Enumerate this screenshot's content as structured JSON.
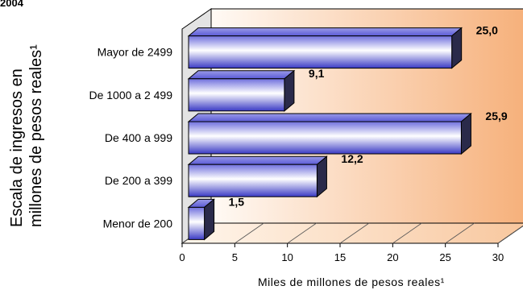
{
  "header_fragment": "2004",
  "chart_data": {
    "type": "bar",
    "orientation": "horizontal",
    "categories": [
      "Mayor de 2499",
      "De 1000 a 2 499",
      "De 400 a 999",
      "De 200 a 399",
      "Menor de 200"
    ],
    "values": [
      25.0,
      9.1,
      25.9,
      12.2,
      1.5
    ],
    "value_labels": [
      "25,0",
      "9,1",
      "25,9",
      "12,2",
      "1,5"
    ],
    "xlabel": "Miles de millones de pesos reales¹",
    "ylabel_line1": "Escala de ingresos en",
    "ylabel_line2": "millones de  pesos reales¹",
    "xlim": [
      0,
      30
    ],
    "xticks": [
      "0",
      "5",
      "10",
      "15",
      "20",
      "25",
      "30"
    ],
    "colors": {
      "bar_light": "#ffffff",
      "bar_dark": "#3333cc",
      "wall_light": "#fde7d4",
      "wall_dark": "#f6b07a"
    }
  }
}
